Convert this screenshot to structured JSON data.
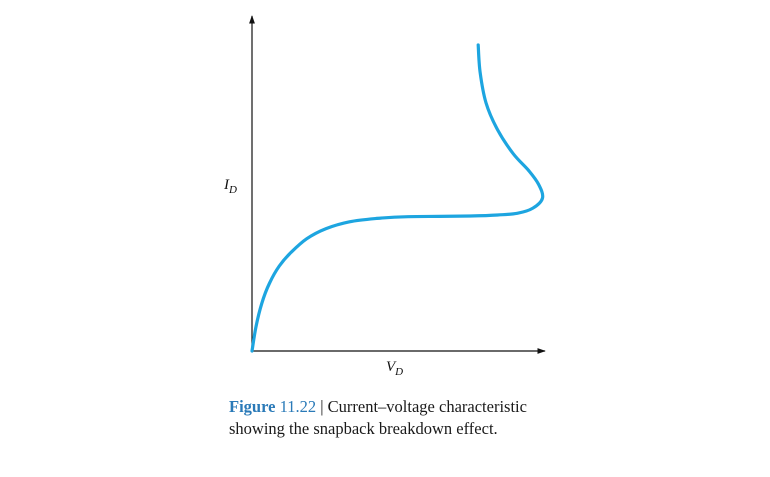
{
  "chart_data": {
    "type": "line",
    "title": "",
    "xlabel": "V",
    "xlabel_sub": "D",
    "ylabel": "I",
    "ylabel_sub": "D",
    "ticks": "none",
    "grid": false,
    "legend": "none",
    "series_color": "#1da5e0",
    "axis_color": "#111111",
    "series": [
      {
        "x": [
          0,
          0.01,
          0.025,
          0.045,
          0.07,
          0.1,
          0.14,
          0.19,
          0.25,
          0.32,
          0.4,
          0.48,
          0.56,
          0.63,
          0.68,
          0.72,
          0.745,
          0.735,
          0.71,
          0.67,
          0.63,
          0.6,
          0.585,
          0.58
        ],
        "y": [
          0,
          0.07,
          0.14,
          0.2,
          0.25,
          0.29,
          0.33,
          0.36,
          0.38,
          0.39,
          0.395,
          0.396,
          0.397,
          0.4,
          0.405,
          0.42,
          0.45,
          0.49,
          0.53,
          0.58,
          0.65,
          0.73,
          0.82,
          0.9
        ]
      }
    ]
  },
  "caption": {
    "label": "Figure",
    "number": "11.22",
    "separator": " | ",
    "text": "Current–voltage characteristic showing the snapback breakdown effect."
  }
}
